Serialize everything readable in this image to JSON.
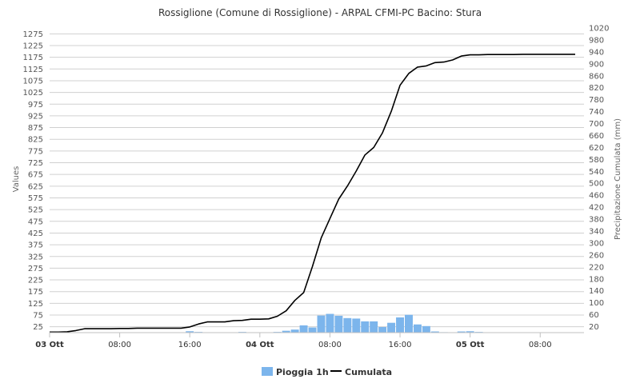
{
  "chart_data": {
    "type": "bar+line",
    "title": "Rossiglione (Comune di Rossiglione) - ARPAL CFMI-PC Bacino: Stura",
    "y_left_label": "Values",
    "y_right_label": "Precipitazione Cumulata (mm)",
    "y_left_ticks": [
      "25",
      "75",
      "125",
      "175",
      "225",
      "275",
      "325",
      "375",
      "425",
      "475",
      "525",
      "575",
      "625",
      "675",
      "725",
      "775",
      "825",
      "875",
      "925",
      "975",
      "1025",
      "1075",
      "1125",
      "1175",
      "1225",
      "1275"
    ],
    "y_right_ticks": [
      "20",
      "60",
      "100",
      "140",
      "180",
      "220",
      "260",
      "300",
      "340",
      "380",
      "420",
      "460",
      "500",
      "540",
      "580",
      "620",
      "660",
      "700",
      "740",
      "780",
      "820",
      "860",
      "900",
      "940",
      "980",
      "1020"
    ],
    "y_left_range": [
      0,
      1300
    ],
    "y_right_range": [
      0,
      1020
    ],
    "x_range_hours": [
      0,
      61
    ],
    "x_ticks": [
      {
        "t": 0,
        "label": "03 Ott",
        "bold": true
      },
      {
        "t": 8,
        "label": "08:00",
        "bold": false
      },
      {
        "t": 16,
        "label": "16:00",
        "bold": false
      },
      {
        "t": 24,
        "label": "04 Ott",
        "bold": true
      },
      {
        "t": 32,
        "label": "08:00",
        "bold": false
      },
      {
        "t": 40,
        "label": "16:00",
        "bold": false
      },
      {
        "t": 48,
        "label": "05 Ott",
        "bold": true
      },
      {
        "t": 56,
        "label": "08:00",
        "bold": false
      }
    ],
    "series": [
      {
        "name": "Pioggia 1h",
        "type": "column",
        "color": "#7cb5ec",
        "x": [
          16,
          17,
          22,
          26,
          27,
          28,
          29,
          30,
          31,
          32,
          33,
          34,
          35,
          36,
          37,
          38,
          39,
          40,
          41,
          42,
          43,
          44,
          45,
          47,
          48,
          49
        ],
        "values": [
          6,
          3,
          3,
          3,
          8,
          13,
          31,
          22,
          73,
          80,
          72,
          62,
          60,
          48,
          48,
          24,
          42,
          65,
          76,
          35,
          28,
          5,
          2,
          5,
          6,
          3
        ]
      },
      {
        "name": "Cumulata",
        "type": "line",
        "color": "#000000",
        "x": [
          0,
          1,
          2,
          3,
          4,
          5,
          6,
          7,
          8,
          9,
          10,
          11,
          12,
          13,
          14,
          15,
          16,
          17,
          18,
          19,
          20,
          21,
          22,
          23,
          24,
          25,
          26,
          27,
          28,
          29,
          30,
          31,
          32,
          33,
          34,
          35,
          36,
          37,
          38,
          39,
          40,
          41,
          42,
          43,
          44,
          45,
          46,
          47,
          48,
          49,
          50,
          51,
          52,
          53,
          54,
          55,
          56,
          57,
          58,
          59,
          60
        ],
        "values": [
          2,
          2,
          3,
          7,
          13,
          13,
          13,
          13,
          14,
          14,
          15,
          15,
          15,
          15,
          15,
          15,
          19,
          29,
          36,
          36,
          36,
          40,
          41,
          45,
          45,
          46,
          55,
          73,
          108,
          134,
          221,
          317,
          382,
          447,
          491,
          541,
          595,
          620,
          669,
          741,
          828,
          868,
          889,
          893,
          904,
          906,
          913,
          926,
          930,
          930,
          931,
          931,
          931,
          931,
          932,
          932,
          932,
          932,
          932,
          932,
          932
        ]
      }
    ],
    "legend": {
      "position": "bottom-center",
      "items": [
        "Pioggia 1h",
        "Cumulata"
      ]
    }
  }
}
